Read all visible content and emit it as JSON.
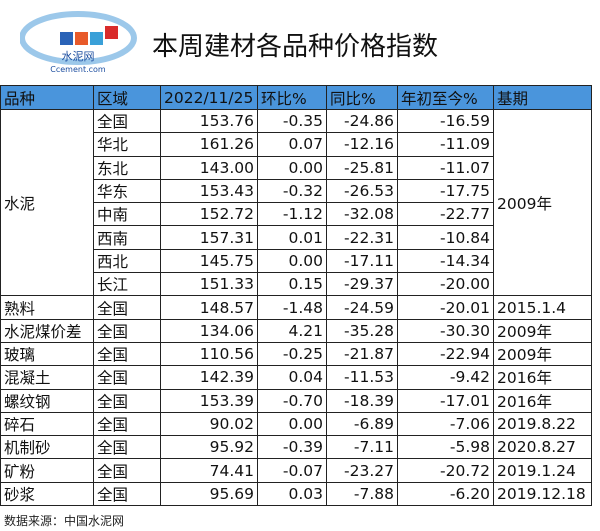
{
  "header": {
    "title": "本周建材各品种价格指数",
    "logo_name": "水泥网",
    "logo_site": "Ccement.com"
  },
  "table": {
    "columns": [
      "品种",
      "区域",
      "2022/11/25",
      "环比%",
      "同比%",
      "年初至今%",
      "基期"
    ],
    "groups": [
      {
        "product": "水泥",
        "base": "2009年",
        "rows": [
          [
            "全国",
            "153.76",
            "-0.35",
            "-24.86",
            "-16.59"
          ],
          [
            "华北",
            "161.26",
            "0.07",
            "-12.16",
            "-11.09"
          ],
          [
            "东北",
            "143.00",
            "0.00",
            "-25.81",
            "-11.07"
          ],
          [
            "华东",
            "153.43",
            "-0.32",
            "-26.53",
            "-17.75"
          ],
          [
            "中南",
            "152.72",
            "-1.12",
            "-32.08",
            "-22.77"
          ],
          [
            "西南",
            "157.31",
            "0.01",
            "-22.31",
            "-10.84"
          ],
          [
            "西北",
            "145.75",
            "0.00",
            "-17.11",
            "-14.34"
          ],
          [
            "长江",
            "151.33",
            "0.15",
            "-29.37",
            "-20.00"
          ]
        ]
      },
      {
        "product": "熟料",
        "base": "2015.1.4",
        "rows": [
          [
            "全国",
            "148.57",
            "-1.48",
            "-24.59",
            "-20.01"
          ]
        ]
      },
      {
        "product": "水泥煤价差",
        "base": "2009年",
        "rows": [
          [
            "全国",
            "134.06",
            "4.21",
            "-35.28",
            "-30.30"
          ]
        ]
      },
      {
        "product": "玻璃",
        "base": "2009年",
        "rows": [
          [
            "全国",
            "110.56",
            "-0.25",
            "-21.87",
            "-22.94"
          ]
        ]
      },
      {
        "product": "混凝土",
        "base": "2016年",
        "rows": [
          [
            "全国",
            "142.39",
            "0.04",
            "-11.53",
            "-9.42"
          ]
        ]
      },
      {
        "product": "螺纹钢",
        "base": "2016年",
        "rows": [
          [
            "全国",
            "153.39",
            "-0.70",
            "-18.39",
            "-17.01"
          ]
        ]
      },
      {
        "product": "碎石",
        "base": "2019.8.22",
        "rows": [
          [
            "全国",
            "90.02",
            "0.00",
            "-6.89",
            "-7.06"
          ]
        ]
      },
      {
        "product": "机制砂",
        "base": "2020.8.27",
        "rows": [
          [
            "全国",
            "95.92",
            "-0.39",
            "-7.11",
            "-5.98"
          ]
        ]
      },
      {
        "product": "矿粉",
        "base": "2019.1.24",
        "rows": [
          [
            "全国",
            "74.41",
            "-0.07",
            "-23.27",
            "-20.72"
          ]
        ]
      },
      {
        "product": "砂浆",
        "base": "2019.12.18",
        "rows": [
          [
            "全国",
            "95.69",
            "0.03",
            "-7.88",
            "-6.20"
          ]
        ]
      }
    ]
  },
  "footer": {
    "source": "数据来源：中国水泥网"
  }
}
